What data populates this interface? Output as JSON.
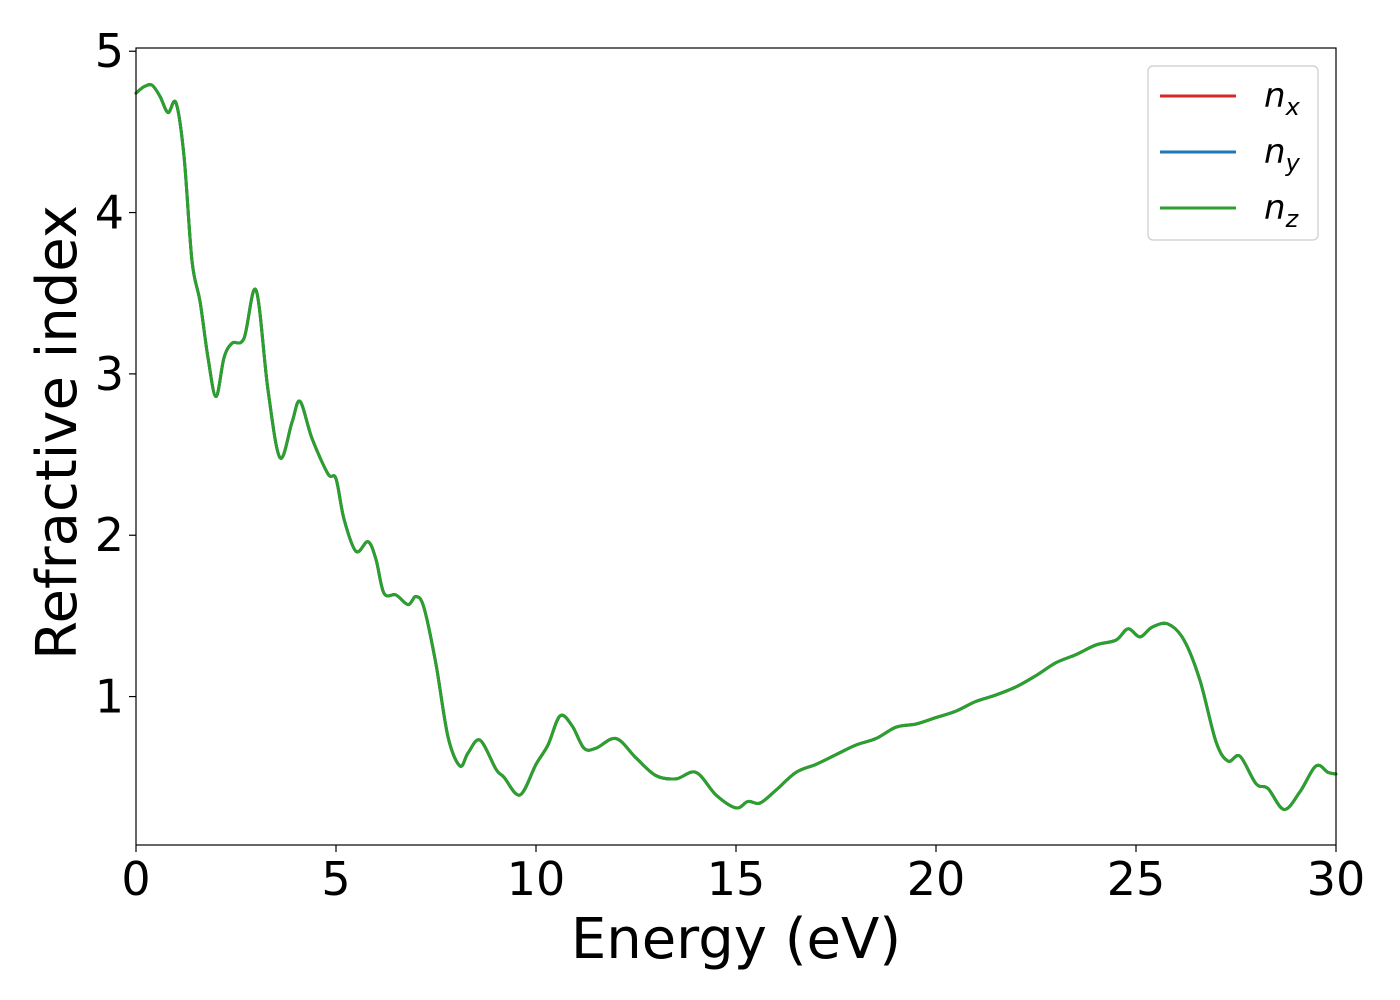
{
  "chart_data": {
    "type": "line",
    "title": "",
    "xlabel": "Energy (eV)",
    "ylabel": "Refractive index",
    "xlim": [
      0,
      30
    ],
    "ylim": [
      0.08,
      5.02
    ],
    "xticks": [
      0,
      5,
      10,
      15,
      20,
      25,
      30
    ],
    "yticks": [
      1,
      2,
      3,
      4,
      5
    ],
    "grid": false,
    "legend": {
      "placement": "top-right",
      "entries": [
        {
          "base": "n",
          "sub": "x",
          "color": "#d62728"
        },
        {
          "base": "n",
          "sub": "y",
          "color": "#1f77b4"
        },
        {
          "base": "n",
          "sub": "z",
          "color": "#2ca02c"
        }
      ]
    },
    "series": [
      {
        "key": "nx",
        "color": "#d62728",
        "x": [
          0,
          0.2,
          0.4,
          0.6,
          0.8,
          1.0,
          1.2,
          1.4,
          1.6,
          1.8,
          2.0,
          2.2,
          2.4,
          2.7,
          3.0,
          3.3,
          3.6,
          3.9,
          4.1,
          4.4,
          4.8,
          5.0,
          5.2,
          5.5,
          5.8,
          6.0,
          6.2,
          6.5,
          6.8,
          7.0,
          7.2,
          7.5,
          7.8,
          8.1,
          8.3,
          8.6,
          9.0,
          9.2,
          9.6,
          10.0,
          10.3,
          10.6,
          10.9,
          11.2,
          11.5,
          12.0,
          12.5,
          13.0,
          13.5,
          14.0,
          14.5,
          15.0,
          15.3,
          15.6,
          16.0,
          16.5,
          17.0,
          17.5,
          18.0,
          18.5,
          19.0,
          19.5,
          20.0,
          20.5,
          21.0,
          21.5,
          22.0,
          22.5,
          23.0,
          23.5,
          24.0,
          24.5,
          24.8,
          25.1,
          25.4,
          25.8,
          26.2,
          26.6,
          27.0,
          27.3,
          27.6,
          28.0,
          28.3,
          28.7,
          29.1,
          29.5,
          29.8,
          30.0
        ],
        "y": [
          4.74,
          4.78,
          4.79,
          4.72,
          4.62,
          4.68,
          4.35,
          3.7,
          3.45,
          3.1,
          2.86,
          3.1,
          3.19,
          3.22,
          3.52,
          2.9,
          2.48,
          2.7,
          2.83,
          2.6,
          2.38,
          2.35,
          2.1,
          1.9,
          1.96,
          1.85,
          1.64,
          1.63,
          1.57,
          1.62,
          1.55,
          1.2,
          0.75,
          0.57,
          0.65,
          0.73,
          0.55,
          0.5,
          0.39,
          0.58,
          0.7,
          0.88,
          0.82,
          0.68,
          0.68,
          0.74,
          0.62,
          0.51,
          0.49,
          0.53,
          0.39,
          0.31,
          0.35,
          0.34,
          0.42,
          0.53,
          0.58,
          0.64,
          0.7,
          0.74,
          0.81,
          0.83,
          0.87,
          0.91,
          0.97,
          1.01,
          1.06,
          1.13,
          1.21,
          1.26,
          1.32,
          1.35,
          1.42,
          1.37,
          1.43,
          1.45,
          1.35,
          1.1,
          0.72,
          0.6,
          0.63,
          0.46,
          0.43,
          0.3,
          0.41,
          0.57,
          0.53,
          0.52
        ]
      },
      {
        "key": "ny",
        "color": "#1f77b4",
        "x": [
          0,
          0.2,
          0.4,
          0.6,
          0.8,
          1.0,
          1.2,
          1.4,
          1.6,
          1.8,
          2.0,
          2.2,
          2.4,
          2.7,
          3.0,
          3.3,
          3.6,
          3.9,
          4.1,
          4.4,
          4.8,
          5.0,
          5.2,
          5.5,
          5.8,
          6.0,
          6.2,
          6.5,
          6.8,
          7.0,
          7.2,
          7.5,
          7.8,
          8.1,
          8.3,
          8.6,
          9.0,
          9.2,
          9.6,
          10.0,
          10.3,
          10.6,
          10.9,
          11.2,
          11.5,
          12.0,
          12.5,
          13.0,
          13.5,
          14.0,
          14.5,
          15.0,
          15.3,
          15.6,
          16.0,
          16.5,
          17.0,
          17.5,
          18.0,
          18.5,
          19.0,
          19.5,
          20.0,
          20.5,
          21.0,
          21.5,
          22.0,
          22.5,
          23.0,
          23.5,
          24.0,
          24.5,
          24.8,
          25.1,
          25.4,
          25.8,
          26.2,
          26.6,
          27.0,
          27.3,
          27.6,
          28.0,
          28.3,
          28.7,
          29.1,
          29.5,
          29.8,
          30.0
        ],
        "y": [
          4.74,
          4.78,
          4.79,
          4.72,
          4.62,
          4.68,
          4.35,
          3.7,
          3.45,
          3.1,
          2.86,
          3.1,
          3.19,
          3.22,
          3.52,
          2.9,
          2.48,
          2.7,
          2.83,
          2.6,
          2.38,
          2.35,
          2.1,
          1.9,
          1.96,
          1.85,
          1.64,
          1.63,
          1.57,
          1.62,
          1.55,
          1.2,
          0.75,
          0.57,
          0.65,
          0.73,
          0.55,
          0.5,
          0.39,
          0.58,
          0.7,
          0.88,
          0.82,
          0.68,
          0.68,
          0.74,
          0.62,
          0.51,
          0.49,
          0.53,
          0.39,
          0.31,
          0.35,
          0.34,
          0.42,
          0.53,
          0.58,
          0.64,
          0.7,
          0.74,
          0.81,
          0.83,
          0.87,
          0.91,
          0.97,
          1.01,
          1.06,
          1.13,
          1.21,
          1.26,
          1.32,
          1.35,
          1.42,
          1.37,
          1.43,
          1.45,
          1.35,
          1.1,
          0.72,
          0.6,
          0.63,
          0.46,
          0.43,
          0.3,
          0.41,
          0.57,
          0.53,
          0.52
        ]
      },
      {
        "key": "nz",
        "color": "#2ca02c",
        "x": [
          0,
          0.2,
          0.4,
          0.6,
          0.8,
          1.0,
          1.2,
          1.4,
          1.6,
          1.8,
          2.0,
          2.2,
          2.4,
          2.7,
          3.0,
          3.3,
          3.6,
          3.9,
          4.1,
          4.4,
          4.8,
          5.0,
          5.2,
          5.5,
          5.8,
          6.0,
          6.2,
          6.5,
          6.8,
          7.0,
          7.2,
          7.5,
          7.8,
          8.1,
          8.3,
          8.6,
          9.0,
          9.2,
          9.6,
          10.0,
          10.3,
          10.6,
          10.9,
          11.2,
          11.5,
          12.0,
          12.5,
          13.0,
          13.5,
          14.0,
          14.5,
          15.0,
          15.3,
          15.6,
          16.0,
          16.5,
          17.0,
          17.5,
          18.0,
          18.5,
          19.0,
          19.5,
          20.0,
          20.5,
          21.0,
          21.5,
          22.0,
          22.5,
          23.0,
          23.5,
          24.0,
          24.5,
          24.8,
          25.1,
          25.4,
          25.8,
          26.2,
          26.6,
          27.0,
          27.3,
          27.6,
          28.0,
          28.3,
          28.7,
          29.1,
          29.5,
          29.8,
          30.0
        ],
        "y": [
          4.74,
          4.78,
          4.79,
          4.72,
          4.62,
          4.68,
          4.35,
          3.7,
          3.45,
          3.1,
          2.86,
          3.1,
          3.19,
          3.22,
          3.52,
          2.9,
          2.48,
          2.7,
          2.83,
          2.6,
          2.38,
          2.35,
          2.1,
          1.9,
          1.96,
          1.85,
          1.64,
          1.63,
          1.57,
          1.62,
          1.55,
          1.2,
          0.75,
          0.57,
          0.65,
          0.73,
          0.55,
          0.5,
          0.39,
          0.58,
          0.7,
          0.88,
          0.82,
          0.68,
          0.68,
          0.74,
          0.62,
          0.51,
          0.49,
          0.53,
          0.39,
          0.31,
          0.35,
          0.34,
          0.42,
          0.53,
          0.58,
          0.64,
          0.7,
          0.74,
          0.81,
          0.83,
          0.87,
          0.91,
          0.97,
          1.01,
          1.06,
          1.13,
          1.21,
          1.26,
          1.32,
          1.35,
          1.42,
          1.37,
          1.43,
          1.45,
          1.35,
          1.1,
          0.72,
          0.6,
          0.63,
          0.46,
          0.43,
          0.3,
          0.41,
          0.57,
          0.53,
          0.52
        ]
      }
    ]
  }
}
